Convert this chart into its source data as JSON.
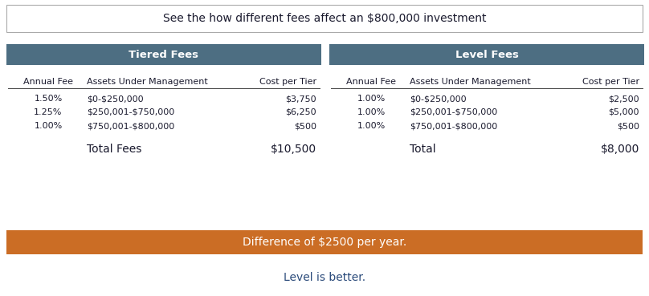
{
  "title": "See the how different fees affect an $800,000 investment",
  "header_bg_color": "#4d6e82",
  "header_text_color": "#ffffff",
  "orange_bg_color": "#cb6d25",
  "orange_text_color": "#ffffff",
  "body_text_color": "#1a1a2e",
  "footer_text_color": "#2a4a7a",
  "tiered_header": "Tiered Fees",
  "level_header": "Level Fees",
  "col_headers": [
    "Annual Fee",
    "Assets Under Management",
    "Cost per Tier"
  ],
  "tiered_rows": [
    [
      "1.50%",
      "$0-$250,000",
      "$3,750"
    ],
    [
      "1.25%",
      "$250,001-$750,000",
      "$6,250"
    ],
    [
      "1.00%",
      "$750,001-$800,000",
      "$500"
    ]
  ],
  "tiered_total_label": "Total Fees",
  "tiered_total_value": "$10,500",
  "level_rows": [
    [
      "1.00%",
      "$0-$250,000",
      "$2,500"
    ],
    [
      "1.00%",
      "$250,001-$750,000",
      "$5,000"
    ],
    [
      "1.00%",
      "$750,001-$800,000",
      "$500"
    ]
  ],
  "level_total_label": "Total",
  "level_total_value": "$8,000",
  "difference_text": "Difference of $2500 per year.",
  "footer_text": "Level is better.",
  "background_color": "#ffffff",
  "fig_width": 8.08,
  "fig_height": 3.69,
  "dpi": 100
}
